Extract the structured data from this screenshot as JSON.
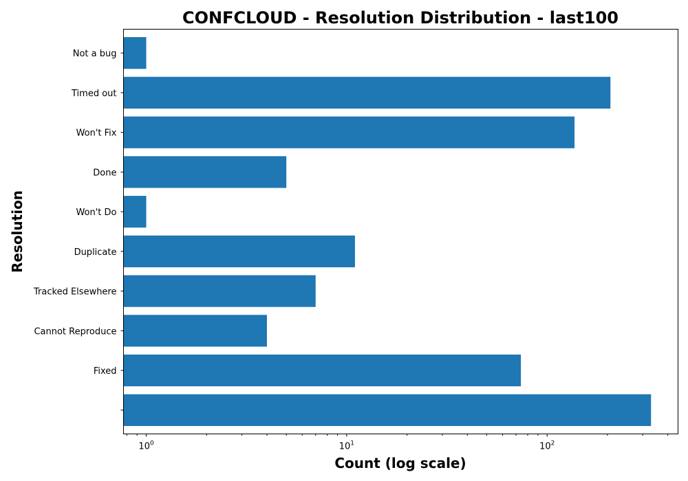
{
  "chart_data": {
    "type": "bar",
    "orientation": "horizontal",
    "title": "CONFCLOUD - Resolution Distribution - last100",
    "xlabel": "Count (log scale)",
    "ylabel": "Resolution",
    "xscale": "log",
    "xlim": [
      0.77,
      450
    ],
    "x_ticks": [
      {
        "value": 1,
        "base": "10",
        "exp": "0"
      },
      {
        "value": 10,
        "base": "10",
        "exp": "1"
      },
      {
        "value": 100,
        "base": "10",
        "exp": "2"
      }
    ],
    "categories": [
      "Not a bug",
      "Timed out",
      "Won't Fix",
      "Done",
      "Won't Do",
      "Duplicate",
      "Tracked Elsewhere",
      "Cannot Reproduce",
      "Fixed",
      ""
    ],
    "values": [
      1,
      207,
      137,
      5,
      1,
      11,
      7,
      4,
      74,
      330
    ],
    "bar_color": "#1f77b4",
    "grid": false,
    "legend": "none"
  }
}
